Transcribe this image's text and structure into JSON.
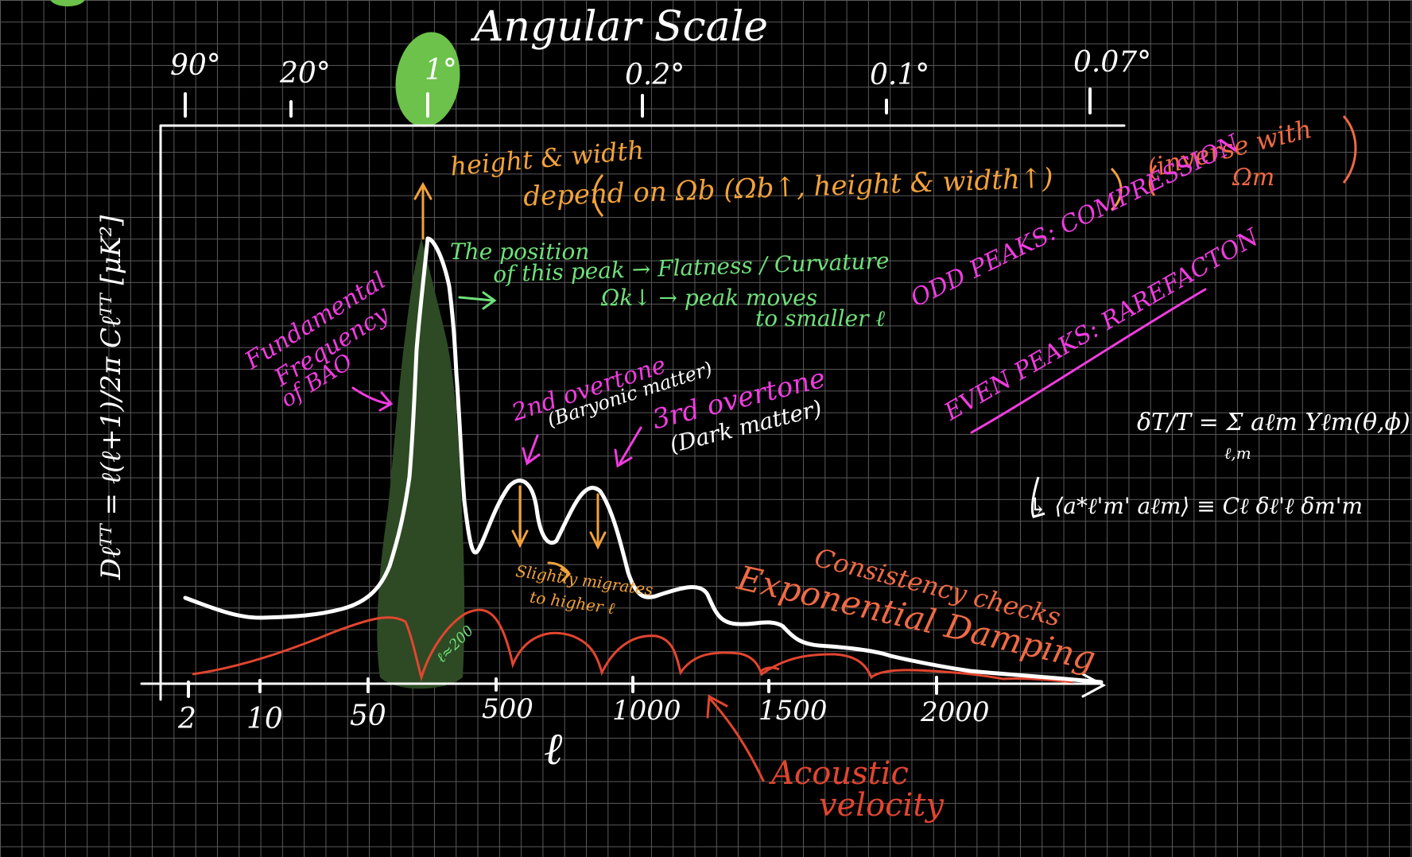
{
  "colors": {
    "background": "#000000",
    "grid": "#5a5a5a",
    "white": "#ffffff",
    "orange": "#f2a23a",
    "green": "#6fe07a",
    "green_fill": "#2d4a24",
    "green_dot": "#6cc24a",
    "magenta": "#f03ce0",
    "red": "#e2452f",
    "red_light": "#ef6a44"
  },
  "top_axis": {
    "title": "Angular Scale",
    "ticks": [
      "90°",
      "20°",
      "1°",
      "0.2°",
      "0.1°",
      "0.07°"
    ]
  },
  "bottom_axis": {
    "label": "ℓ",
    "ticks": [
      "2",
      "10",
      "50",
      "500",
      "1000",
      "1500",
      "2000"
    ]
  },
  "y_axis": {
    "label": "Dℓᵀᵀ = ℓ(ℓ+1)/2π Cℓᵀᵀ  [μK²]"
  },
  "annotations": {
    "height_width_line1": "height & width",
    "height_width_line2": "depend on Ωb (Ωb↑, height & width↑)",
    "inverse_line1": "(inverse with",
    "inverse_line2": "Ωm",
    "position_line1": "The position",
    "position_line2": "of this peak → Flatness / Curvature",
    "position_line3": "Ωk↓ → peak moves",
    "position_line4": "to smaller ℓ",
    "fundamental_line1": "Fundamental",
    "fundamental_line2": "Frequency",
    "fundamental_line3": "of BAO",
    "overtone2_line1": "2nd overtone",
    "overtone2_line2": "(Baryonic matter)",
    "overtone3_line1": "3rd overtone",
    "overtone3_line2": "(Dark matter)",
    "odd_peaks": "ODD PEAKS: COMPRESSION",
    "even_peaks": "EVEN PEAKS: RAREFACTON",
    "slightly_line1": "Slightly migrates",
    "slightly_line2": "to higher ℓ",
    "consistency": "Consistency checks",
    "damping": "Exponential Damping",
    "l200": "ℓ≈200",
    "acoustic_line1": "Acoustic",
    "acoustic_line2": "velocity"
  },
  "equations": {
    "eq1": "δT/T = Σ aℓm Yℓm(θ,ϕ)",
    "eq1_sub": "ℓ,m",
    "eq2": "↳ ⟨a*ℓ'm' aℓm⟩ ≡ Cℓ δℓ'ℓ δm'm"
  }
}
